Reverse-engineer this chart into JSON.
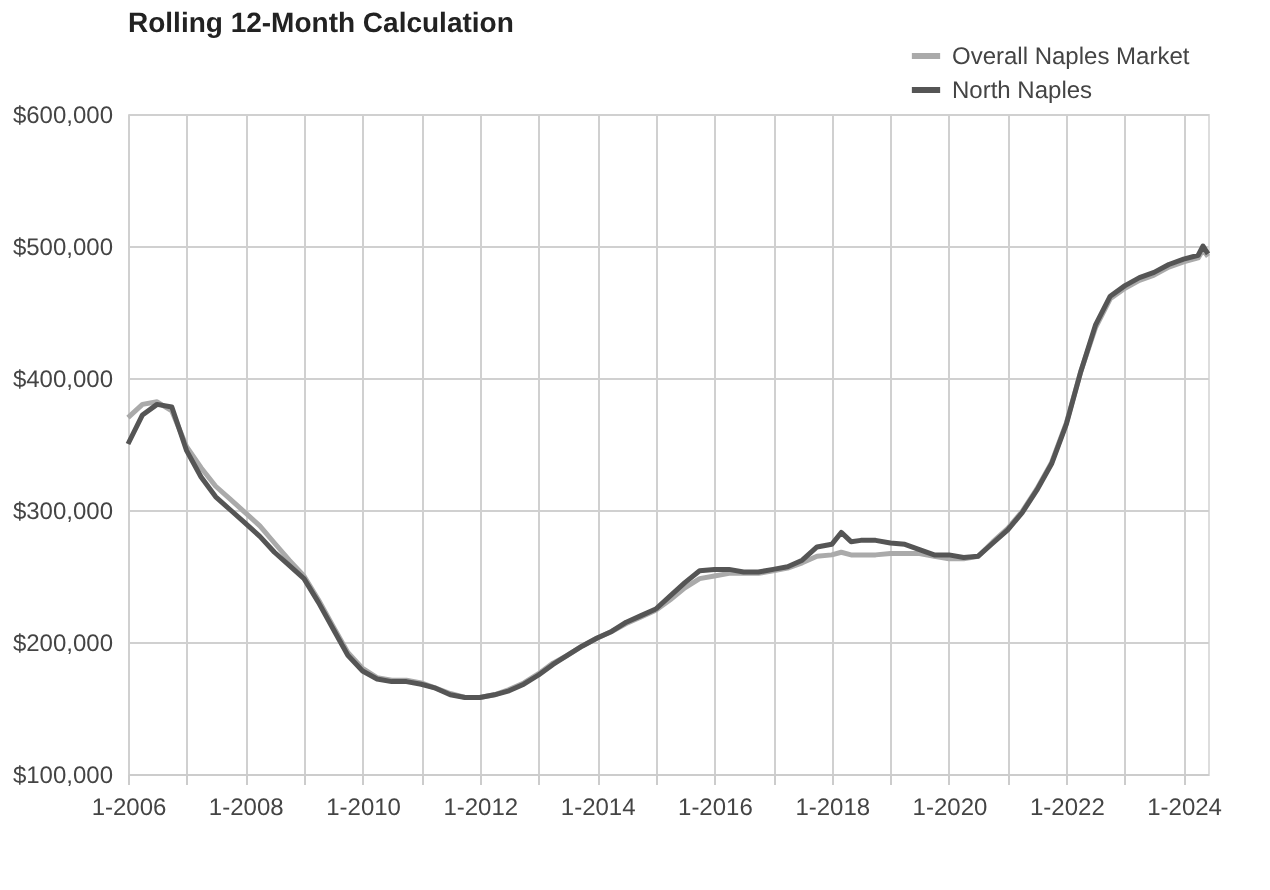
{
  "chart_data": {
    "type": "line",
    "title": "Rolling 12-Month Calculation",
    "x": [
      "2006-01",
      "2006-04",
      "2006-07",
      "2006-10",
      "2007-01",
      "2007-04",
      "2007-07",
      "2007-10",
      "2008-01",
      "2008-04",
      "2008-07",
      "2008-10",
      "2009-01",
      "2009-04",
      "2009-07",
      "2009-10",
      "2010-01",
      "2010-04",
      "2010-07",
      "2010-10",
      "2011-01",
      "2011-04",
      "2011-07",
      "2011-10",
      "2012-01",
      "2012-04",
      "2012-07",
      "2012-10",
      "2013-01",
      "2013-04",
      "2013-07",
      "2013-10",
      "2014-01",
      "2014-04",
      "2014-07",
      "2014-10",
      "2015-01",
      "2015-04",
      "2015-07",
      "2015-10",
      "2016-01",
      "2016-04",
      "2016-07",
      "2016-10",
      "2017-01",
      "2017-04",
      "2017-07",
      "2017-10",
      "2018-01",
      "2018-03",
      "2018-05",
      "2018-07",
      "2018-10",
      "2019-01",
      "2019-04",
      "2019-07",
      "2019-10",
      "2020-01",
      "2020-04",
      "2020-07",
      "2020-10",
      "2021-01",
      "2021-04",
      "2021-07",
      "2021-10",
      "2022-01",
      "2022-04",
      "2022-07",
      "2022-10",
      "2023-01",
      "2023-04",
      "2023-07",
      "2023-10",
      "2024-01",
      "2024-04",
      "2024-05",
      "2024-06"
    ],
    "series": [
      {
        "name": "Overall Naples Market",
        "color": "#aaaaaa",
        "values": [
          370000,
          380000,
          382000,
          375000,
          348000,
          332000,
          318000,
          308000,
          298000,
          288000,
          275000,
          262000,
          250000,
          232000,
          212000,
          192000,
          180000,
          173000,
          171000,
          171000,
          169000,
          165000,
          161000,
          158000,
          158000,
          160000,
          164000,
          169000,
          176000,
          184000,
          190000,
          197000,
          203000,
          208000,
          214000,
          219000,
          224000,
          232000,
          241000,
          248000,
          250000,
          252000,
          252000,
          252000,
          254000,
          256000,
          260000,
          265000,
          266000,
          268000,
          266000,
          266000,
          266000,
          267000,
          267000,
          267000,
          265000,
          263000,
          263000,
          265000,
          276000,
          286000,
          299000,
          316000,
          336000,
          366000,
          405000,
          438000,
          460000,
          468000,
          474000,
          478000,
          484000,
          488000,
          491000,
          497000,
          492000
        ]
      },
      {
        "name": "North Naples",
        "color": "#555555",
        "values": [
          350000,
          372000,
          380000,
          378000,
          345000,
          325000,
          310000,
          300000,
          290000,
          280000,
          268000,
          258000,
          248000,
          230000,
          210000,
          190000,
          178000,
          172000,
          170000,
          170000,
          168000,
          165000,
          160000,
          158000,
          158000,
          160000,
          163000,
          168000,
          175000,
          183000,
          190000,
          197000,
          203000,
          208000,
          215000,
          220000,
          225000,
          235000,
          245000,
          254000,
          255000,
          255000,
          253000,
          253000,
          255000,
          257000,
          262000,
          272000,
          274000,
          283000,
          276000,
          277000,
          277000,
          275000,
          274000,
          270000,
          266000,
          266000,
          264000,
          265000,
          275000,
          285000,
          298000,
          315000,
          335000,
          365000,
          405000,
          440000,
          462000,
          470000,
          476000,
          480000,
          486000,
          490000,
          493000,
          500000,
          494000
        ]
      }
    ],
    "xlim": [
      "2006-01",
      "2024-06"
    ],
    "xticks": [
      {
        "value": "2006-01",
        "label": "1-2006"
      },
      {
        "value": "2007-01",
        "label": null
      },
      {
        "value": "2008-01",
        "label": "1-2008"
      },
      {
        "value": "2009-01",
        "label": null
      },
      {
        "value": "2010-01",
        "label": "1-2010"
      },
      {
        "value": "2011-01",
        "label": null
      },
      {
        "value": "2012-01",
        "label": "1-2012"
      },
      {
        "value": "2013-01",
        "label": null
      },
      {
        "value": "2014-01",
        "label": "1-2014"
      },
      {
        "value": "2015-01",
        "label": null
      },
      {
        "value": "2016-01",
        "label": "1-2016"
      },
      {
        "value": "2017-01",
        "label": null
      },
      {
        "value": "2018-01",
        "label": "1-2018"
      },
      {
        "value": "2019-01",
        "label": null
      },
      {
        "value": "2020-01",
        "label": "1-2020"
      },
      {
        "value": "2021-01",
        "label": null
      },
      {
        "value": "2022-01",
        "label": "1-2022"
      },
      {
        "value": "2023-01",
        "label": null
      },
      {
        "value": "2024-01",
        "label": "1-2024"
      }
    ],
    "ylim": [
      100000,
      600000
    ],
    "yticks": [
      {
        "value": 100000,
        "label": "$100,000"
      },
      {
        "value": 200000,
        "label": "$200,000"
      },
      {
        "value": 300000,
        "label": "$300,000"
      },
      {
        "value": 400000,
        "label": "$400,000"
      },
      {
        "value": 500000,
        "label": "$500,000"
      },
      {
        "value": 600000,
        "label": "$600,000"
      }
    ],
    "grid": true,
    "legend": "top right",
    "marker": "none",
    "line_style": "solid"
  }
}
